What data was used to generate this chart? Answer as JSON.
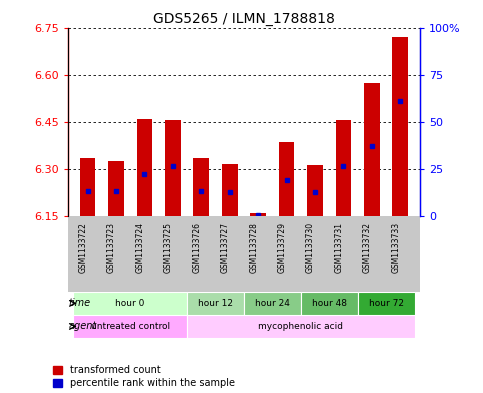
{
  "title": "GDS5265 / ILMN_1788818",
  "samples": [
    "GSM1133722",
    "GSM1133723",
    "GSM1133724",
    "GSM1133725",
    "GSM1133726",
    "GSM1133727",
    "GSM1133728",
    "GSM1133729",
    "GSM1133730",
    "GSM1133731",
    "GSM1133732",
    "GSM1133733"
  ],
  "bar_bottom": 6.15,
  "bar_tops": [
    6.335,
    6.325,
    6.46,
    6.455,
    6.335,
    6.315,
    6.162,
    6.385,
    6.312,
    6.455,
    6.575,
    6.72
  ],
  "blue_vals": [
    6.232,
    6.229,
    6.285,
    6.31,
    6.232,
    6.226,
    6.155,
    6.265,
    6.228,
    6.31,
    6.375,
    6.515
  ],
  "ylim_left": [
    6.15,
    6.75
  ],
  "ylim_right": [
    0,
    100
  ],
  "yticks_left": [
    6.15,
    6.3,
    6.45,
    6.6,
    6.75
  ],
  "yticks_right": [
    0,
    25,
    50,
    75,
    100
  ],
  "bar_color": "#cc0000",
  "blue_color": "#0000cc",
  "bar_width": 0.55,
  "time_groups": [
    {
      "label": "hour 0",
      "start": 0,
      "end": 3
    },
    {
      "label": "hour 12",
      "start": 4,
      "end": 5
    },
    {
      "label": "hour 24",
      "start": 6,
      "end": 7
    },
    {
      "label": "hour 48",
      "start": 8,
      "end": 9
    },
    {
      "label": "hour 72",
      "start": 10,
      "end": 11
    }
  ],
  "time_colors": [
    "#ccffcc",
    "#aaddaa",
    "#88cc88",
    "#66bb66",
    "#33aa33"
  ],
  "agent_groups": [
    {
      "label": "untreated control",
      "start": 0,
      "end": 3
    },
    {
      "label": "mycophenolic acid",
      "start": 4,
      "end": 11
    }
  ],
  "agent_colors": [
    "#ffaaff",
    "#ffccff"
  ],
  "legend_items": [
    {
      "label": "transformed count",
      "color": "#cc0000",
      "marker": "s"
    },
    {
      "label": "percentile rank within the sample",
      "color": "#0000cc",
      "marker": "s"
    }
  ],
  "plot_bg": "#d8d8d8",
  "sample_bg": "#c8c8c8"
}
